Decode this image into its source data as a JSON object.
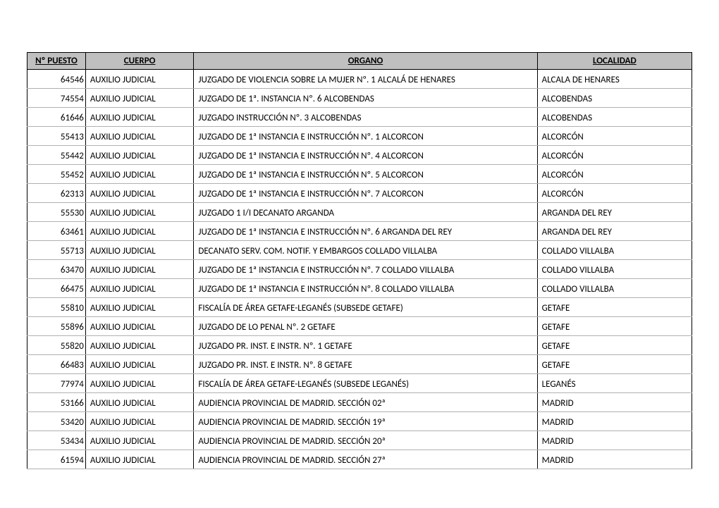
{
  "table": {
    "header_bg": "#c0c0c0",
    "border_color": "#000000",
    "row_border_color": "#b0b0b0",
    "font_size": 13,
    "columns": [
      {
        "key": "puesto",
        "label": "Nº PUESTO",
        "underline": true
      },
      {
        "key": "cuerpo",
        "label": "CUERPO",
        "underline": true
      },
      {
        "key": "organo",
        "label": "ORGANO",
        "underline": true
      },
      {
        "key": "localidad",
        "label": "LOCALIDAD",
        "underline": true
      }
    ],
    "rows": [
      {
        "puesto": "64546",
        "cuerpo": "AUXILIO JUDICIAL",
        "organo": "JUZGADO DE VIOLENCIA SOBRE LA MUJER Nº. 1 ALCALÁ DE HENARES",
        "localidad": "ALCALA DE HENARES"
      },
      {
        "puesto": "74554",
        "cuerpo": "AUXILIO JUDICIAL",
        "organo": "JUZGADO DE 1ª. INSTANCIA Nº.  6 ALCOBENDAS",
        "localidad": "ALCOBENDAS"
      },
      {
        "puesto": "61646",
        "cuerpo": "AUXILIO JUDICIAL",
        "organo": "JUZGADO INSTRUCCIÓN  Nº. 3 ALCOBENDAS",
        "localidad": "ALCOBENDAS"
      },
      {
        "puesto": "55413",
        "cuerpo": "AUXILIO JUDICIAL",
        "organo": "JUZGADO DE 1ª INSTANCIA E INSTRUCCIÓN Nº. 1 ALCORCON",
        "localidad": "ALCORCÓN"
      },
      {
        "puesto": "55442",
        "cuerpo": "AUXILIO JUDICIAL",
        "organo": "JUZGADO DE 1ª INSTANCIA E INSTRUCCIÓN Nº. 4 ALCORCON",
        "localidad": "ALCORCÓN"
      },
      {
        "puesto": "55452",
        "cuerpo": "AUXILIO JUDICIAL",
        "organo": "JUZGADO DE 1ª INSTANCIA E INSTRUCCIÓN Nº. 5 ALCORCON",
        "localidad": "ALCORCÓN"
      },
      {
        "puesto": "62313",
        "cuerpo": "AUXILIO JUDICIAL",
        "organo": "JUZGADO DE 1ª INSTANCIA E INSTRUCCIÓN Nº. 7 ALCORCON",
        "localidad": "ALCORCÓN"
      },
      {
        "puesto": "55530",
        "cuerpo": "AUXILIO JUDICIAL",
        "organo": "JUZGADO 1 I/I DECANATO ARGANDA",
        "localidad": "ARGANDA DEL REY"
      },
      {
        "puesto": "63461",
        "cuerpo": "AUXILIO JUDICIAL",
        "organo": "JUZGADO DE 1ª INSTANCIA E INSTRUCCIÓN Nº. 6 ARGANDA DEL REY",
        "localidad": "ARGANDA DEL REY"
      },
      {
        "puesto": "55713",
        "cuerpo": "AUXILIO JUDICIAL",
        "organo": "DECANATO SERV. COM. NOTIF. Y EMBARGOS COLLADO VILLALBA",
        "localidad": "COLLADO VILLALBA"
      },
      {
        "puesto": "63470",
        "cuerpo": "AUXILIO JUDICIAL",
        "organo": "JUZGADO DE 1ª INSTANCIA E INSTRUCCIÓN Nº. 7 COLLADO VILLALBA",
        "localidad": "COLLADO VILLALBA"
      },
      {
        "puesto": "66475",
        "cuerpo": "AUXILIO JUDICIAL",
        "organo": "JUZGADO DE 1ª INSTANCIA E INSTRUCCIÓN Nº. 8 COLLADO VILLALBA",
        "localidad": "COLLADO VILLALBA"
      },
      {
        "puesto": "55810",
        "cuerpo": "AUXILIO JUDICIAL",
        "organo": "FISCALÍA DE ÁREA GETAFE-LEGANÉS (SUBSEDE GETAFE)",
        "localidad": "GETAFE"
      },
      {
        "puesto": "55896",
        "cuerpo": "AUXILIO JUDICIAL",
        "organo": "JUZGADO DE LO PENAL Nº. 2 GETAFE",
        "localidad": "GETAFE"
      },
      {
        "puesto": "55820",
        "cuerpo": "AUXILIO JUDICIAL",
        "organo": "JUZGADO PR. INST. E INSTR. Nº. 1 GETAFE",
        "localidad": "GETAFE"
      },
      {
        "puesto": "66483",
        "cuerpo": "AUXILIO JUDICIAL",
        "organo": "JUZGADO PR. INST. E INSTR. Nº. 8 GETAFE",
        "localidad": "GETAFE"
      },
      {
        "puesto": "77974",
        "cuerpo": "AUXILIO JUDICIAL",
        "organo": "FISCALÍA DE ÁREA GETAFE-LEGANÉS (SUBSEDE LEGANÉS)",
        "localidad": "LEGANÉS"
      },
      {
        "puesto": "53166",
        "cuerpo": "AUXILIO JUDICIAL",
        "organo": "AUDIENCIA PROVINCIAL DE MADRID. SECCIÓN 02ª",
        "localidad": "MADRID"
      },
      {
        "puesto": "53420",
        "cuerpo": "AUXILIO JUDICIAL",
        "organo": "AUDIENCIA PROVINCIAL DE MADRID. SECCIÓN 19ª",
        "localidad": "MADRID"
      },
      {
        "puesto": "53434",
        "cuerpo": "AUXILIO JUDICIAL",
        "organo": "AUDIENCIA PROVINCIAL DE MADRID. SECCIÓN 20ª",
        "localidad": "MADRID"
      },
      {
        "puesto": "61594",
        "cuerpo": "AUXILIO JUDICIAL",
        "organo": "AUDIENCIA PROVINCIAL DE MADRID. SECCIÓN 27ª",
        "localidad": "MADRID"
      }
    ]
  }
}
